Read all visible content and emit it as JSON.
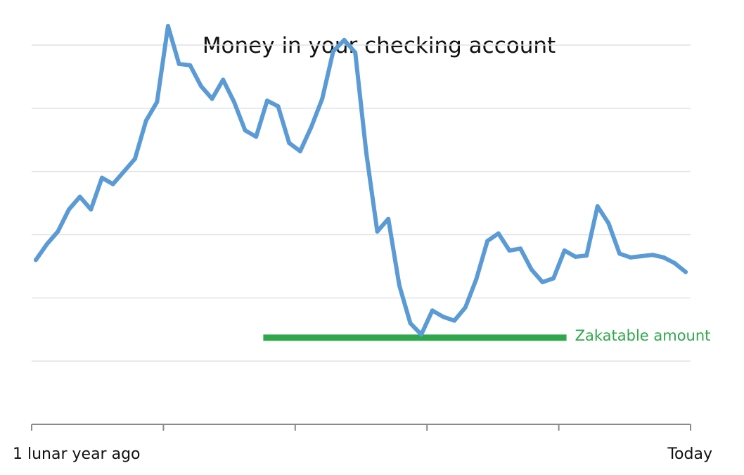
{
  "colors": {
    "line": "#5b9bd5",
    "zakat": "#2ea84a",
    "grid": "#e2e2e6",
    "axis": "#8a8a8a"
  },
  "chart_data": {
    "type": "line",
    "title": "Money in your checking account",
    "xlabel": "",
    "ylabel": "",
    "x_tick_labels": {
      "start": "1 lunar year ago",
      "end": "Today"
    },
    "x_range": [
      0,
      60
    ],
    "ylim": [
      0,
      6
    ],
    "grid": true,
    "series": [
      {
        "values": [
          2.6,
          2.85,
          3.05,
          3.4,
          3.6,
          3.4,
          3.9,
          3.8,
          4.0,
          4.2,
          4.8,
          5.1,
          6.3,
          5.7,
          5.68,
          5.35,
          5.15,
          5.45,
          5.1,
          4.65,
          4.55,
          5.12,
          5.03,
          4.45,
          4.32,
          4.7,
          5.15,
          5.9,
          6.08,
          5.88,
          4.3,
          3.05,
          3.25,
          2.2,
          1.6,
          1.42,
          1.8,
          1.7,
          1.64,
          1.85,
          2.3,
          2.9,
          3.02,
          2.75,
          2.78,
          2.45,
          2.25,
          2.31,
          2.75,
          2.65,
          2.67,
          3.45,
          3.18,
          2.7,
          2.64,
          2.66,
          2.68,
          2.64,
          2.55,
          2.41
        ]
      }
    ],
    "annotations": [
      {
        "type": "hline",
        "label": "Zakatable amount",
        "y": 1.37,
        "x_start": 21,
        "x_end": 49
      }
    ]
  }
}
